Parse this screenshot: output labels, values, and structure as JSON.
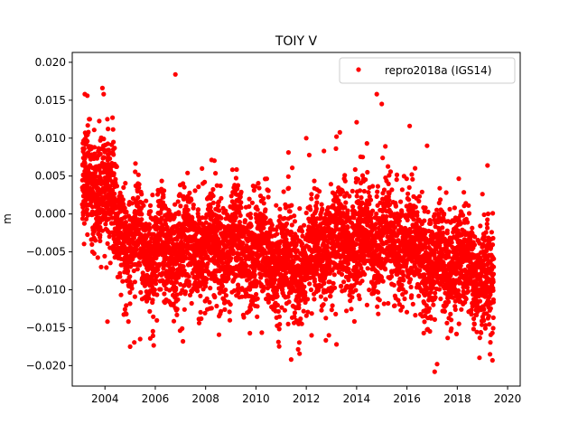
{
  "chart_data": {
    "type": "scatter",
    "title": "TOIY V",
    "xlabel": "",
    "ylabel": "m",
    "xlim": [
      2002.7,
      2020.5
    ],
    "ylim": [
      -0.0227,
      0.0213
    ],
    "x_ticks": [
      2004,
      2006,
      2008,
      2010,
      2012,
      2014,
      2016,
      2018,
      2020
    ],
    "x_tick_labels": [
      "2004",
      "2006",
      "2008",
      "2010",
      "2012",
      "2014",
      "2016",
      "2018",
      "2020"
    ],
    "y_ticks": [
      -0.02,
      -0.015,
      -0.01,
      -0.005,
      0.0,
      0.005,
      0.01,
      0.015,
      0.02
    ],
    "y_tick_labels": [
      "−0.020",
      "−0.015",
      "−0.010",
      "−0.005",
      "0.000",
      "0.005",
      "0.010",
      "0.015",
      "0.020"
    ],
    "grid": false,
    "legend_position": "top-right",
    "series": [
      {
        "name": "repro2018a (IGS14)",
        "color": "#ff0000",
        "marker": "circle",
        "x_range": [
          2003.1,
          2019.45
        ],
        "trend_segments": [
          {
            "x": 2003.1,
            "y": 0.004
          },
          {
            "x": 2004.0,
            "y": 0.003
          },
          {
            "x": 2004.5,
            "y": -0.001
          },
          {
            "x": 2005.0,
            "y": -0.004
          },
          {
            "x": 2006.0,
            "y": -0.005
          },
          {
            "x": 2008.0,
            "y": -0.0045
          },
          {
            "x": 2010.0,
            "y": -0.005
          },
          {
            "x": 2011.5,
            "y": -0.007
          },
          {
            "x": 2013.0,
            "y": -0.004
          },
          {
            "x": 2014.5,
            "y": -0.003
          },
          {
            "x": 2016.0,
            "y": -0.004
          },
          {
            "x": 2017.0,
            "y": -0.007
          },
          {
            "x": 2018.0,
            "y": -0.006
          },
          {
            "x": 2019.0,
            "y": -0.008
          },
          {
            "x": 2019.45,
            "y": -0.011
          }
        ],
        "scatter_std": 0.0035,
        "outliers": [
          {
            "x": 2003.2,
            "y": 0.0158
          },
          {
            "x": 2003.3,
            "y": 0.0156
          },
          {
            "x": 2003.9,
            "y": 0.0166
          },
          {
            "x": 2003.95,
            "y": 0.0158
          },
          {
            "x": 2004.3,
            "y": 0.0127
          },
          {
            "x": 2006.8,
            "y": 0.0184
          },
          {
            "x": 2004.1,
            "y": -0.0142
          },
          {
            "x": 2005.0,
            "y": -0.0175
          },
          {
            "x": 2005.4,
            "y": -0.0165
          },
          {
            "x": 2007.1,
            "y": -0.0168
          },
          {
            "x": 2011.4,
            "y": -0.0192
          },
          {
            "x": 2012.9,
            "y": -0.016
          },
          {
            "x": 2013.2,
            "y": -0.0172
          },
          {
            "x": 2014.0,
            "y": 0.0121
          },
          {
            "x": 2014.8,
            "y": 0.0158
          },
          {
            "x": 2015.0,
            "y": 0.0145
          },
          {
            "x": 2017.1,
            "y": -0.0208
          },
          {
            "x": 2017.2,
            "y": -0.0198
          },
          {
            "x": 2019.2,
            "y": 0.0064
          },
          {
            "x": 2019.3,
            "y": -0.0185
          },
          {
            "x": 2019.4,
            "y": -0.0193
          },
          {
            "x": 2012.0,
            "y": 0.01
          },
          {
            "x": 2012.7,
            "y": 0.0083
          },
          {
            "x": 2013.2,
            "y": 0.0102
          },
          {
            "x": 2016.8,
            "y": 0.009
          }
        ]
      }
    ]
  }
}
